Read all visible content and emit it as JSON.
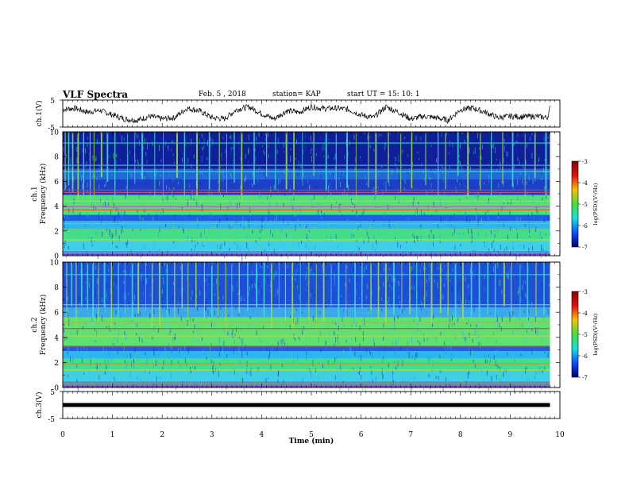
{
  "header": {
    "title": "VLF Spectra",
    "date": "Feb. 5 , 2018",
    "station": "station= KAP",
    "start_ut": "start UT =  15: 10: 1"
  },
  "chart_data": [
    {
      "type": "line",
      "panel": "ch1-waveform",
      "ylabel": "ch.1(V)",
      "ylim": [
        -5,
        5
      ],
      "yticks": [
        "5",
        "-5"
      ],
      "xlim": [
        0,
        10
      ],
      "series": [
        {
          "x": [
            0,
            0.25,
            0.5,
            0.75,
            1,
            1.25,
            1.5,
            1.75,
            2,
            2.25,
            2.5,
            2.75,
            3,
            3.25,
            3.5,
            3.75,
            4,
            4.25,
            4.5,
            4.75,
            5,
            5.25,
            5.5,
            5.75,
            6,
            6.25,
            6.5,
            6.75,
            7,
            7.25,
            7.5,
            7.75,
            8,
            8.25,
            8.5,
            8.75,
            9,
            9.25,
            9.5,
            9.75,
            9.8
          ],
          "y": [
            1.5,
            2,
            0.5,
            1.2,
            -0.5,
            -2,
            -2.5,
            -1,
            -2,
            -1.5,
            2,
            1,
            -1.5,
            -2,
            1.5,
            2.5,
            0,
            -2,
            1,
            0.5,
            2.5,
            1.8,
            2,
            1.5,
            -0.5,
            -1.5,
            2.5,
            0.5,
            -2,
            -1,
            -1.5,
            -2.5,
            1.5,
            2,
            0.5,
            -1.5,
            -1,
            -1.2,
            -1,
            -1.5,
            2
          ]
        }
      ]
    },
    {
      "type": "heatmap",
      "panel": "ch1-spectrogram",
      "ylabel": "ch.1 Frequency (kHz)",
      "ylim": [
        0,
        10
      ],
      "yticks": [
        "0",
        "2",
        "4",
        "6",
        "8",
        "10"
      ],
      "xlim": [
        0,
        10
      ],
      "bands": [
        {
          "from": 0,
          "to": 0.4,
          "color": "#2a9df0"
        },
        {
          "from": 0.4,
          "to": 1.2,
          "color": "#3dcfe8"
        },
        {
          "from": 1.2,
          "to": 2.2,
          "color": "#45dd8a"
        },
        {
          "from": 2.2,
          "to": 2.8,
          "color": "#2bb6ef"
        },
        {
          "from": 2.8,
          "to": 3.3,
          "color": "#1f5ce8"
        },
        {
          "from": 3.3,
          "to": 4.9,
          "color": "#4fe07a"
        },
        {
          "from": 4.9,
          "to": 6.2,
          "color": "#1c3fc8"
        },
        {
          "from": 6.2,
          "to": 7.0,
          "color": "#1f6ad8"
        },
        {
          "from": 7.0,
          "to": 10,
          "color": "#0f1f9a"
        }
      ],
      "lines": [
        {
          "f": 0.1,
          "color": "#7a3ab0"
        },
        {
          "f": 0.3,
          "color": "#d47a30"
        },
        {
          "f": 1.3,
          "color": "#c8d030"
        },
        {
          "f": 2.2,
          "color": "#d88a2a"
        },
        {
          "f": 2.6,
          "color": "#e0a030"
        },
        {
          "f": 3.7,
          "color": "#d8602a"
        },
        {
          "f": 3.95,
          "color": "#c850c0"
        },
        {
          "f": 4.4,
          "color": "#e0c030"
        },
        {
          "f": 5.1,
          "color": "#c84a70"
        },
        {
          "f": 5.3,
          "color": "#d03a3a"
        },
        {
          "f": 6.8,
          "color": "#40e0e0"
        },
        {
          "f": 7.3,
          "color": "#3ab0e0"
        },
        {
          "f": 9.1,
          "color": "#30d0d0"
        }
      ],
      "bursts": [
        0.05,
        0.12,
        0.2,
        0.31,
        0.42,
        0.55,
        0.63,
        0.78,
        0.9,
        1.05,
        1.3,
        1.45,
        1.6,
        1.85,
        2.02,
        2.3,
        2.45,
        2.7,
        2.95,
        3.15,
        3.3,
        3.45,
        3.6,
        3.85,
        4.1,
        4.28,
        4.5,
        4.65,
        4.82,
        5.05,
        5.3,
        5.5,
        5.72,
        5.9,
        6.15,
        6.3,
        6.55,
        6.8,
        7.02,
        7.3,
        7.55,
        7.7,
        7.95,
        8.15,
        8.4,
        8.62,
        8.85,
        9.05,
        9.3,
        9.5,
        9.72
      ]
    },
    {
      "type": "heatmap",
      "panel": "ch2-spectrogram",
      "ylabel": "ch.2 Frequency (kHz)",
      "ylim": [
        0,
        10
      ],
      "yticks": [
        "0",
        "2",
        "4",
        "6",
        "8",
        "10"
      ],
      "xlim": [
        0,
        10
      ],
      "bands": [
        {
          "from": 0,
          "to": 0.5,
          "color": "#2a9df0"
        },
        {
          "from": 0.5,
          "to": 1.3,
          "color": "#3dcfe8"
        },
        {
          "from": 1.3,
          "to": 2.3,
          "color": "#45dd8a"
        },
        {
          "from": 2.3,
          "to": 2.9,
          "color": "#2bb6ef"
        },
        {
          "from": 2.9,
          "to": 3.3,
          "color": "#1f5ce8"
        },
        {
          "from": 3.3,
          "to": 5.6,
          "color": "#5fe070"
        },
        {
          "from": 5.6,
          "to": 6.4,
          "color": "#3aa8ea"
        },
        {
          "from": 6.4,
          "to": 10,
          "color": "#1e4fd8"
        }
      ],
      "lines": [
        {
          "f": 0.1,
          "color": "#7a3ab0"
        },
        {
          "f": 0.35,
          "color": "#d47a30"
        },
        {
          "f": 1.4,
          "color": "#c8d030"
        },
        {
          "f": 1.9,
          "color": "#d88a2a"
        },
        {
          "f": 3.3,
          "color": "#d8602a"
        },
        {
          "f": 4.1,
          "color": "#e0c030"
        },
        {
          "f": 4.7,
          "color": "#c84a70"
        },
        {
          "f": 5.2,
          "color": "#e0a030"
        },
        {
          "f": 6.6,
          "color": "#40e0e0"
        },
        {
          "f": 9.0,
          "color": "#30d0d0"
        }
      ],
      "bursts": [
        0.08,
        0.18,
        0.27,
        0.38,
        0.5,
        0.61,
        0.72,
        0.84,
        0.98,
        1.12,
        1.25,
        1.4,
        1.52,
        1.67,
        1.8,
        1.95,
        2.1,
        2.25,
        2.4,
        2.52,
        2.68,
        2.85,
        3.0,
        3.12,
        3.28,
        3.4,
        3.55,
        3.72,
        3.9,
        4.05,
        4.2,
        4.35,
        4.48,
        4.62,
        4.78,
        4.95,
        5.1,
        5.25,
        5.4,
        5.55,
        5.7,
        5.88,
        6.02,
        6.2,
        6.35,
        6.5,
        6.66,
        6.82,
        6.98,
        7.12,
        7.28,
        7.42,
        7.6,
        7.75,
        7.9,
        8.05,
        8.22,
        8.38,
        8.55,
        8.7,
        8.88,
        9.02,
        9.2,
        9.35,
        9.52,
        9.68
      ]
    },
    {
      "type": "line",
      "panel": "ch3-waveform",
      "ylabel": "ch.3(V)",
      "ylim": [
        -5,
        5
      ],
      "yticks": [
        "5",
        "-5"
      ],
      "xlim": [
        0,
        10
      ],
      "xlabel": "Time (min)",
      "xticks": [
        "0",
        "1",
        "2",
        "3",
        "4",
        "5",
        "6",
        "7",
        "8",
        "9",
        "10"
      ],
      "series": [
        {
          "x": [
            0,
            9.8
          ],
          "y": [
            0,
            0
          ]
        }
      ]
    }
  ],
  "colorbars": [
    {
      "ticks": [
        "-3",
        "-4",
        "-5",
        "-6",
        "-7"
      ],
      "label": "log(PSD)(V²/Hz)"
    },
    {
      "ticks": [
        "-3",
        "-4",
        "-5",
        "-6",
        "-7"
      ],
      "label": "log(PSD)(V²/Hz)"
    }
  ],
  "colors": {
    "colormap": [
      "#8a0000",
      "#e01010",
      "#f8c000",
      "#40e040",
      "#10e0e0",
      "#1050ff",
      "#000070"
    ]
  }
}
